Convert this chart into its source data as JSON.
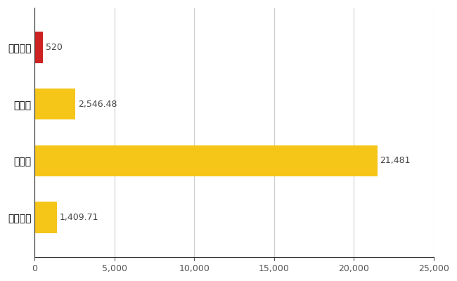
{
  "categories": [
    "江田島市",
    "県平均",
    "県最大",
    "全国平均"
  ],
  "values": [
    520,
    2546.48,
    21481,
    1409.71
  ],
  "labels": [
    "520",
    "2,546.48",
    "21,481",
    "1,409.71"
  ],
  "bar_colors": [
    "#cc2222",
    "#f5c518",
    "#f5c518",
    "#f5c518"
  ],
  "xlim": [
    0,
    25000
  ],
  "xticks": [
    0,
    5000,
    10000,
    15000,
    20000,
    25000
  ],
  "background_color": "#ffffff",
  "grid_color": "#cccccc",
  "bar_height": 0.55,
  "label_fontsize": 9,
  "tick_fontsize": 9,
  "ytick_fontsize": 10
}
